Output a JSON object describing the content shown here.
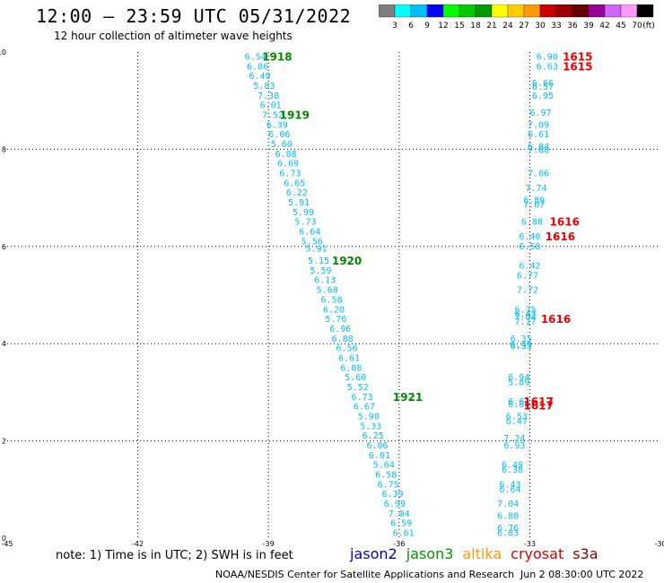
{
  "header": {
    "title": "12:00 – 23:59 UTC 05/31/2022",
    "subtitle": "12 hour collection of altimeter wave heights"
  },
  "colorbar": {
    "colors": [
      "#7f7f7f",
      "#00ffff",
      "#00bfff",
      "#0000ff",
      "#00ff00",
      "#00cc00",
      "#009900",
      "#ffff00",
      "#ffcc00",
      "#ff9900",
      "#cc0000",
      "#990000",
      "#660000",
      "#990099",
      "#cc66ff",
      "#ff99ff",
      "#000000"
    ],
    "labels": [
      "3",
      "6",
      "9",
      "12",
      "15",
      "18",
      "21",
      "24",
      "27",
      "30",
      "33",
      "36",
      "39",
      "42",
      "45",
      "70",
      "(ft)"
    ]
  },
  "chart_data": {
    "type": "scatter",
    "xlim": [
      -45,
      -30
    ],
    "ylim": [
      0,
      10
    ],
    "xticks": [
      "-45",
      "-42",
      "-39",
      "-36",
      "-33",
      "-30"
    ],
    "yticks": [
      "0",
      "2",
      "4",
      "6",
      "8",
      "10"
    ],
    "grid": true,
    "series": [
      {
        "color": "#00bfff",
        "points": [
          {
            "x": -39.3,
            "y": 9.9,
            "label": "6.54"
          },
          {
            "x": -39.25,
            "y": 9.7,
            "label": "6.06"
          },
          {
            "x": -39.2,
            "y": 9.5,
            "label": "6.49"
          },
          {
            "x": -39.1,
            "y": 9.3,
            "label": "5.83"
          },
          {
            "x": -39.0,
            "y": 9.1,
            "label": "7.38"
          },
          {
            "x": -38.95,
            "y": 8.9,
            "label": "6.01"
          },
          {
            "x": -38.9,
            "y": 8.7,
            "label": "7.52"
          },
          {
            "x": -38.8,
            "y": 8.5,
            "label": "6.39"
          },
          {
            "x": -38.75,
            "y": 8.3,
            "label": "6.06"
          },
          {
            "x": -38.7,
            "y": 8.1,
            "label": "5.60"
          },
          {
            "x": -38.6,
            "y": 7.9,
            "label": "6.88"
          },
          {
            "x": -38.55,
            "y": 7.7,
            "label": "6.69"
          },
          {
            "x": -38.5,
            "y": 7.5,
            "label": "6.73"
          },
          {
            "x": -38.4,
            "y": 7.3,
            "label": "6.65"
          },
          {
            "x": -38.35,
            "y": 7.1,
            "label": "6.22"
          },
          {
            "x": -38.3,
            "y": 6.9,
            "label": "5.91"
          },
          {
            "x": -38.2,
            "y": 6.7,
            "label": "5.99"
          },
          {
            "x": -38.15,
            "y": 6.5,
            "label": "5.73"
          },
          {
            "x": -38.05,
            "y": 6.3,
            "label": "6.64"
          },
          {
            "x": -38.0,
            "y": 6.1,
            "label": "5.56"
          },
          {
            "x": -37.9,
            "y": 5.95,
            "label": "5.91"
          },
          {
            "x": -37.85,
            "y": 5.7,
            "label": "5.15"
          },
          {
            "x": -37.8,
            "y": 5.5,
            "label": "5.59"
          },
          {
            "x": -37.7,
            "y": 5.3,
            "label": "6.13"
          },
          {
            "x": -37.65,
            "y": 5.1,
            "label": "5.68"
          },
          {
            "x": -37.55,
            "y": 4.9,
            "label": "6.58"
          },
          {
            "x": -37.5,
            "y": 4.7,
            "label": "6.20"
          },
          {
            "x": -37.45,
            "y": 4.5,
            "label": "5.76"
          },
          {
            "x": -37.35,
            "y": 4.3,
            "label": "6.96"
          },
          {
            "x": -37.3,
            "y": 4.1,
            "label": "6.88"
          },
          {
            "x": -37.2,
            "y": 3.9,
            "label": "6.56"
          },
          {
            "x": -37.15,
            "y": 3.7,
            "label": "6.61"
          },
          {
            "x": -37.1,
            "y": 3.5,
            "label": "6.08"
          },
          {
            "x": -37.0,
            "y": 3.3,
            "label": "5.60"
          },
          {
            "x": -36.95,
            "y": 3.1,
            "label": "5.52"
          },
          {
            "x": -36.85,
            "y": 2.9,
            "label": "6.73"
          },
          {
            "x": -36.8,
            "y": 2.7,
            "label": "6.67"
          },
          {
            "x": -36.7,
            "y": 2.5,
            "label": "5.90"
          },
          {
            "x": -36.65,
            "y": 2.3,
            "label": "5.33"
          },
          {
            "x": -36.6,
            "y": 2.1,
            "label": "6.25"
          },
          {
            "x": -36.5,
            "y": 1.9,
            "label": "6.06"
          },
          {
            "x": -36.45,
            "y": 1.7,
            "label": "6.01"
          },
          {
            "x": -36.35,
            "y": 1.5,
            "label": "5.64"
          },
          {
            "x": -36.3,
            "y": 1.3,
            "label": "6.58"
          },
          {
            "x": -36.25,
            "y": 1.1,
            "label": "6.75"
          },
          {
            "x": -36.15,
            "y": 0.9,
            "label": "6.39"
          },
          {
            "x": -36.1,
            "y": 0.7,
            "label": "6.99"
          },
          {
            "x": -36.0,
            "y": 0.5,
            "label": "7.04"
          },
          {
            "x": -35.95,
            "y": 0.3,
            "label": "6.59"
          },
          {
            "x": -35.9,
            "y": 0.1,
            "label": "6.61"
          }
        ]
      },
      {
        "color": "#00bfff",
        "points": [
          {
            "x": -32.6,
            "y": 9.9,
            "label": "6.90"
          },
          {
            "x": -32.6,
            "y": 9.7,
            "label": "6.63"
          },
          {
            "x": -32.7,
            "y": 9.35,
            "label": "6.66"
          },
          {
            "x": -32.7,
            "y": 9.28,
            "label": "6.57"
          },
          {
            "x": -32.7,
            "y": 9.1,
            "label": "6.95"
          },
          {
            "x": -32.75,
            "y": 8.75,
            "label": "6.97"
          },
          {
            "x": -32.8,
            "y": 8.5,
            "label": "7.09"
          },
          {
            "x": -32.8,
            "y": 8.3,
            "label": "6.61"
          },
          {
            "x": -32.8,
            "y": 8.05,
            "label": "6.84"
          },
          {
            "x": -32.8,
            "y": 7.98,
            "label": "7.88"
          },
          {
            "x": -32.8,
            "y": 7.5,
            "label": "7.06"
          },
          {
            "x": -32.85,
            "y": 7.2,
            "label": "7.74"
          },
          {
            "x": -32.9,
            "y": 6.95,
            "label": "6.89"
          },
          {
            "x": -32.9,
            "y": 6.85,
            "label": "7.07"
          },
          {
            "x": -32.95,
            "y": 6.5,
            "label": "6.88"
          },
          {
            "x": -33.0,
            "y": 6.2,
            "label": "6.40"
          },
          {
            "x": -33.0,
            "y": 6.0,
            "label": "6.58"
          },
          {
            "x": -33.0,
            "y": 5.6,
            "label": "6.42"
          },
          {
            "x": -33.05,
            "y": 5.4,
            "label": "6.77"
          },
          {
            "x": -33.05,
            "y": 5.1,
            "label": "7.72"
          },
          {
            "x": -33.1,
            "y": 4.7,
            "label": "6.75"
          },
          {
            "x": -33.1,
            "y": 4.6,
            "label": "6.43"
          },
          {
            "x": -33.1,
            "y": 4.55,
            "label": "7.04"
          },
          {
            "x": -33.1,
            "y": 4.45,
            "label": "7.17"
          },
          {
            "x": -33.2,
            "y": 4.1,
            "label": "6.35"
          },
          {
            "x": -33.2,
            "y": 3.98,
            "label": "6.49"
          },
          {
            "x": -33.2,
            "y": 3.95,
            "label": "6.33"
          },
          {
            "x": -33.25,
            "y": 3.3,
            "label": "6.94"
          },
          {
            "x": -33.25,
            "y": 3.2,
            "label": "5.89"
          },
          {
            "x": -33.25,
            "y": 2.8,
            "label": "6.61"
          },
          {
            "x": -33.25,
            "y": 2.75,
            "label": "6.82"
          },
          {
            "x": -33.3,
            "y": 2.5,
            "label": "6.53"
          },
          {
            "x": -33.3,
            "y": 2.4,
            "label": "6.47"
          },
          {
            "x": -33.35,
            "y": 2.05,
            "label": "7.24"
          },
          {
            "x": -33.35,
            "y": 1.9,
            "label": "6.93"
          },
          {
            "x": -33.4,
            "y": 1.5,
            "label": "6.49"
          },
          {
            "x": -33.4,
            "y": 1.4,
            "label": "6.38"
          },
          {
            "x": -33.45,
            "y": 1.1,
            "label": "6.43"
          },
          {
            "x": -33.45,
            "y": 1.0,
            "label": "6.64"
          },
          {
            "x": -33.5,
            "y": 0.7,
            "label": "7.04"
          },
          {
            "x": -33.5,
            "y": 0.45,
            "label": "6.88"
          },
          {
            "x": -33.5,
            "y": 0.2,
            "label": "6.76"
          },
          {
            "x": -33.5,
            "y": 0.1,
            "label": "6.83"
          }
        ]
      }
    ],
    "pass_labels": [
      {
        "text": "1918",
        "x": -38.8,
        "y": 9.9,
        "color": "#008800"
      },
      {
        "text": "1919",
        "x": -38.4,
        "y": 8.7,
        "color": "#008800"
      },
      {
        "text": "1920",
        "x": -37.2,
        "y": 5.7,
        "color": "#008800"
      },
      {
        "text": "1921",
        "x": -35.8,
        "y": 2.9,
        "color": "#008800"
      },
      {
        "text": "1615",
        "x": -31.9,
        "y": 9.9,
        "color": "#ee0000"
      },
      {
        "text": "1615",
        "x": -31.9,
        "y": 9.7,
        "color": "#ee0000"
      },
      {
        "text": "1616",
        "x": -32.2,
        "y": 6.5,
        "color": "#ee0000"
      },
      {
        "text": "1616",
        "x": -32.3,
        "y": 6.2,
        "color": "#ee0000"
      },
      {
        "text": "1616",
        "x": -32.4,
        "y": 4.5,
        "color": "#ee0000"
      },
      {
        "text": "1617",
        "x": -32.8,
        "y": 2.8,
        "color": "#ee0000"
      },
      {
        "text": "1617",
        "x": -32.8,
        "y": 2.72,
        "color": "#ee0000"
      }
    ]
  },
  "footer": {
    "note": "note:  1) Time is in UTC;  2) SWH is in feet",
    "legend": [
      {
        "label": "jason2",
        "color": "#0000cc"
      },
      {
        "label": "jason3",
        "color": "#009900"
      },
      {
        "label": "altika",
        "color": "#ff9900"
      },
      {
        "label": "cryosat",
        "color": "#dd0000"
      },
      {
        "label": "s3a",
        "color": "#880000"
      }
    ],
    "credit": "NOAA/NESDIS Center for Satellite Applications and Research",
    "timestamp": "Jun  2 08:30:00 UTC 2022"
  }
}
